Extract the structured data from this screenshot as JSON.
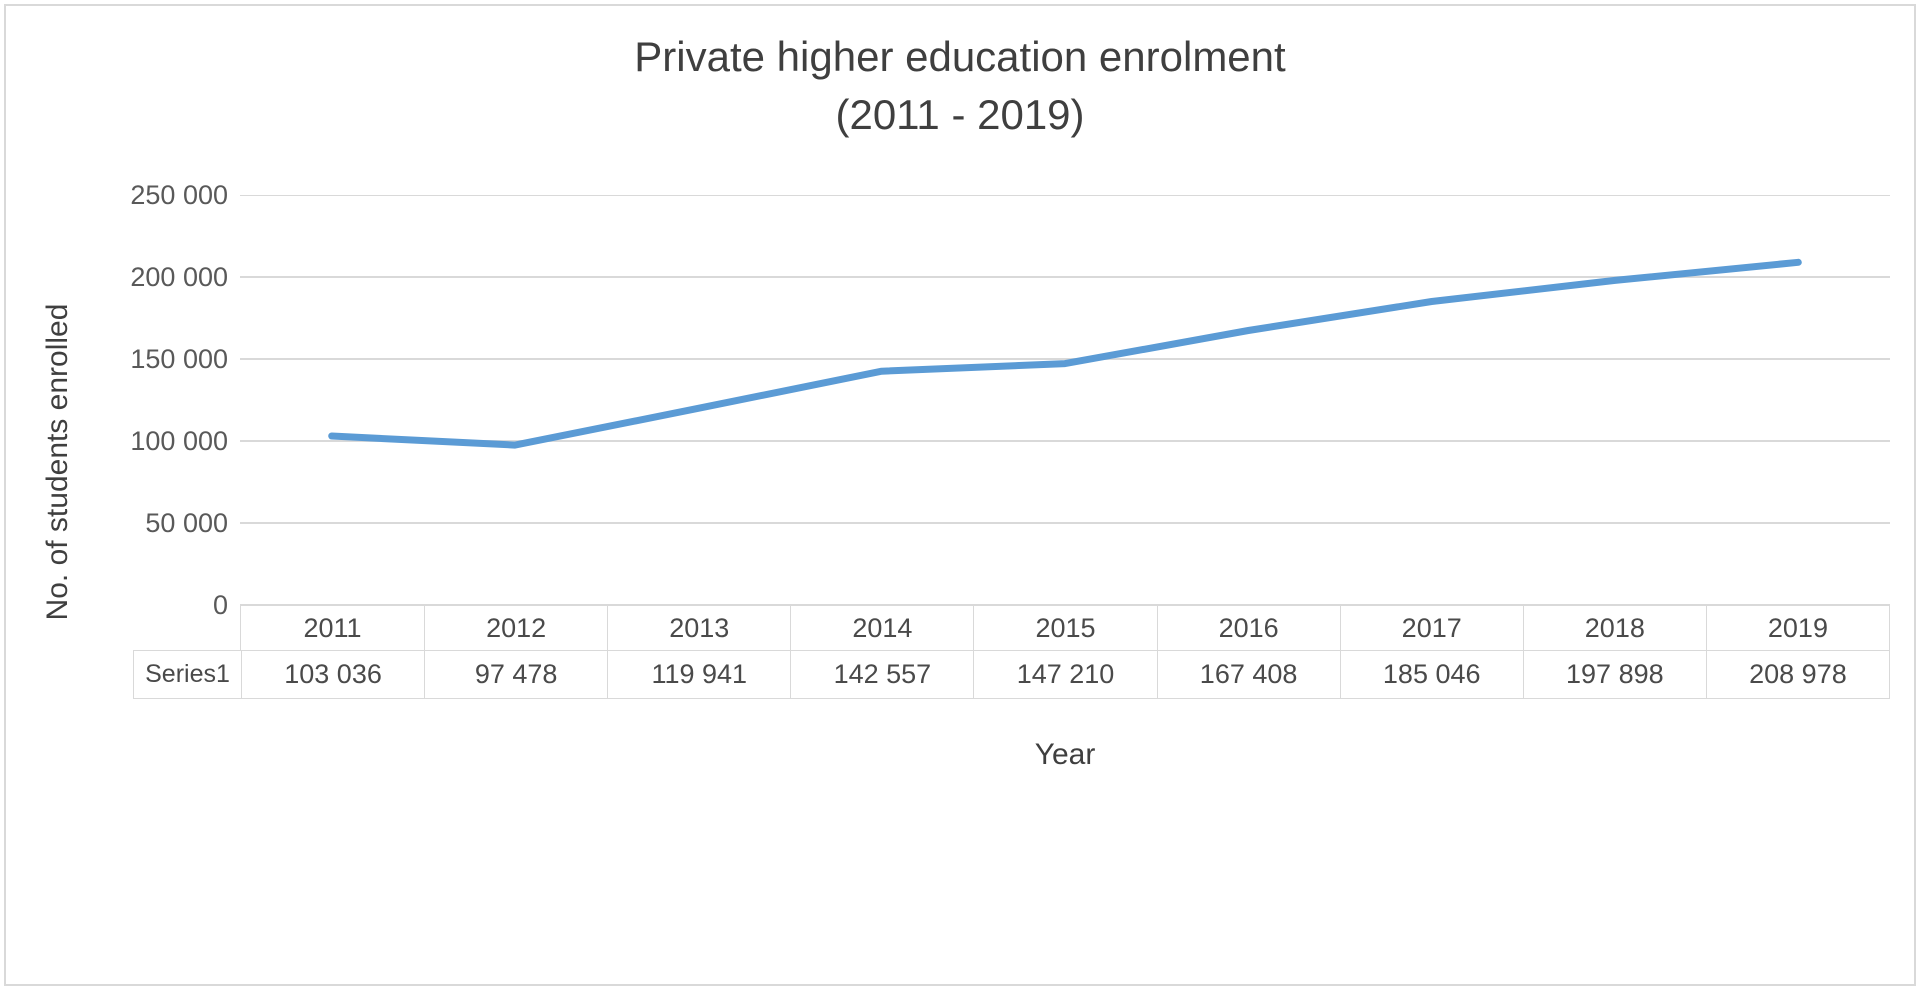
{
  "chart_data": {
    "type": "line",
    "title": "Private higher education enrolment (2011 - 2019)",
    "title_lines": [
      "Private higher education enrolment",
      "(2011 - 2019)"
    ],
    "xlabel": "Year",
    "ylabel": "No. of students enrolled",
    "series_name": "Series1",
    "categories": [
      "2011",
      "2012",
      "2013",
      "2014",
      "2015",
      "2016",
      "2017",
      "2018",
      "2019"
    ],
    "values": [
      103036,
      97478,
      119941,
      142557,
      147210,
      167408,
      185046,
      197898,
      208978
    ],
    "value_labels": [
      "103 036",
      "97 478",
      "119 941",
      "142 557",
      "147 210",
      "167 408",
      "185 046",
      "197 898",
      "208 978"
    ],
    "ylim": [
      0,
      250000
    ],
    "y_ticks": [
      0,
      50000,
      100000,
      150000,
      200000,
      250000
    ],
    "y_tick_labels_top_down": [
      "250 000",
      "200 000",
      "150 000",
      "100 000",
      "50 000",
      "0"
    ],
    "line_color": "#5B9BD5",
    "gridline_color": "#d9d9d9",
    "grid": true,
    "legend_position": "none",
    "data_table_shown": true
  }
}
